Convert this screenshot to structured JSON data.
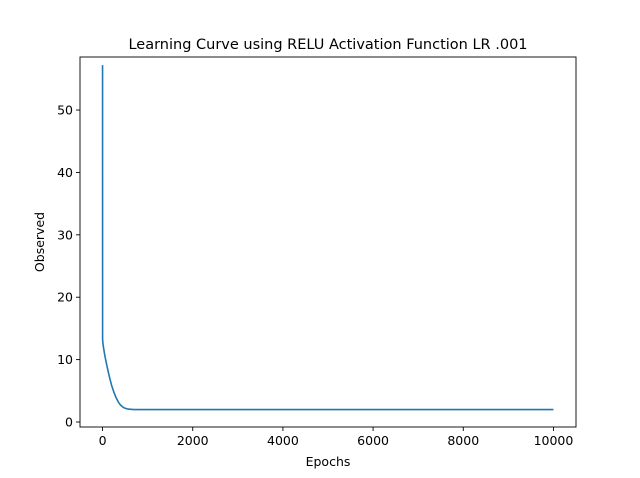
{
  "chart_data": {
    "type": "line",
    "title": "Learning Curve using RELU Activation Function  LR .001",
    "xlabel": "Epochs",
    "ylabel": "Observed",
    "xlim": [
      -500,
      10500
    ],
    "ylim": [
      -0.8,
      58.5
    ],
    "xticks": [
      0,
      2000,
      4000,
      6000,
      8000,
      10000
    ],
    "yticks": [
      0,
      10,
      20,
      30,
      40,
      50
    ],
    "grid": false,
    "series": [
      {
        "color": "#1f77b4",
        "x": [
          0,
          1,
          3,
          10,
          20,
          40,
          60,
          80,
          100,
          150,
          200,
          250,
          300,
          350,
          400,
          450,
          500,
          550,
          600,
          700,
          800,
          1000,
          1500,
          2000,
          4000,
          6000,
          8000,
          10000
        ],
        "y": [
          57.2,
          13.5,
          13.0,
          12.5,
          12.0,
          11.1,
          10.3,
          9.6,
          8.9,
          7.3,
          5.9,
          4.8,
          3.9,
          3.2,
          2.7,
          2.4,
          2.2,
          2.1,
          2.05,
          2.0,
          2.0,
          2.0,
          2.0,
          2.0,
          2.0,
          2.0,
          2.0,
          2.0
        ]
      }
    ]
  }
}
